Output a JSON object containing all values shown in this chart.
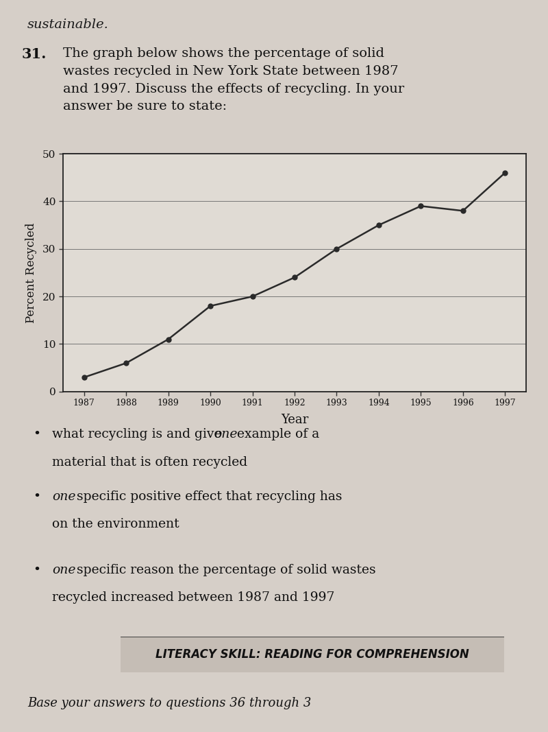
{
  "years": [
    1987,
    1988,
    1989,
    1990,
    1991,
    1992,
    1993,
    1994,
    1995,
    1996,
    1997
  ],
  "values": [
    3,
    6,
    11,
    18,
    20,
    24,
    30,
    35,
    39,
    38,
    46
  ],
  "xlabel": "Year",
  "ylabel": "Percent Recycled",
  "ylim": [
    0,
    50
  ],
  "yticks": [
    0,
    10,
    20,
    30,
    40,
    50
  ],
  "line_color": "#2a2a2a",
  "marker_color": "#2a2a2a",
  "bg_color": "#d6cfc8",
  "plot_bg_color": "#e0dbd4",
  "sustainable_text": "sustainable.",
  "question_num": "31.",
  "question_body": "The graph below shows the percentage of solid\nwastes recycled in New York State between 1987\nand 1997. Discuss the effects of recycling. In your\nanswer be sure to state:",
  "bullet1_normal": "what recycling is and give ",
  "bullet1_italic": "one",
  "bullet1_after": " example of a\nmaterial that is often recycled",
  "bullet2_italic": "one",
  "bullet2_after": " specific positive effect that recycling has\non the environment",
  "bullet3_italic": "one",
  "bullet3_after": " specific reason the percentage of solid wastes\nrecycled increased between 1987 and 1997",
  "footer_text": "LITERACY SKILL: READING FOR COMPREHENSION",
  "bottom_text": "Base your answers to questions 36 through 3"
}
